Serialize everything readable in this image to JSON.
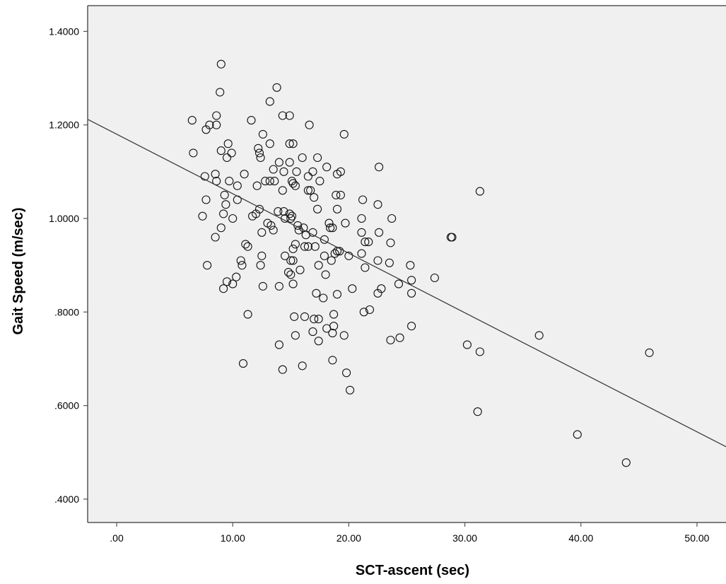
{
  "chart_data": {
    "type": "scatter",
    "xlabel": "SCT-ascent (sec)",
    "ylabel": "Gait Speed (m/sec)",
    "xlim": [
      -2.5,
      52.5
    ],
    "ylim": [
      0.35,
      1.455
    ],
    "x_ticks": [
      0,
      10,
      20,
      30,
      40,
      50
    ],
    "x_tick_labels": [
      ".00",
      "10.00",
      "20.00",
      "30.00",
      "40.00",
      "50.00"
    ],
    "y_ticks": [
      0.4,
      0.6,
      0.8,
      1.0,
      1.2,
      1.4
    ],
    "y_tick_labels": [
      ".4000",
      ".6000",
      ".8000",
      "1.0000",
      "1.2000",
      "1.4000"
    ],
    "grid": false,
    "plot_background": "#f0f0f0",
    "marker": "open-circle",
    "fit_line": {
      "type": "linear",
      "points": [
        [
          -2.5,
          1.212
        ],
        [
          52.5,
          0.512
        ]
      ]
    },
    "points": [
      [
        9.0,
        1.33
      ],
      [
        13.8,
        1.28
      ],
      [
        8.9,
        1.27
      ],
      [
        13.2,
        1.25
      ],
      [
        14.3,
        1.22
      ],
      [
        14.9,
        1.22
      ],
      [
        8.6,
        1.22
      ],
      [
        6.5,
        1.21
      ],
      [
        11.6,
        1.21
      ],
      [
        8.0,
        1.2
      ],
      [
        8.6,
        1.2
      ],
      [
        16.6,
        1.2
      ],
      [
        7.7,
        1.19
      ],
      [
        19.6,
        1.18
      ],
      [
        12.6,
        1.18
      ],
      [
        9.6,
        1.16
      ],
      [
        13.2,
        1.16
      ],
      [
        14.9,
        1.16
      ],
      [
        15.2,
        1.16
      ],
      [
        12.2,
        1.15
      ],
      [
        9.0,
        1.145
      ],
      [
        12.3,
        1.14
      ],
      [
        6.6,
        1.14
      ],
      [
        9.9,
        1.14
      ],
      [
        12.4,
        1.13
      ],
      [
        9.5,
        1.13
      ],
      [
        16.0,
        1.13
      ],
      [
        17.3,
        1.13
      ],
      [
        14.0,
        1.12
      ],
      [
        14.9,
        1.12
      ],
      [
        22.6,
        1.11
      ],
      [
        18.1,
        1.11
      ],
      [
        13.5,
        1.105
      ],
      [
        19.3,
        1.1
      ],
      [
        16.9,
        1.1
      ],
      [
        11.0,
        1.095
      ],
      [
        8.5,
        1.095
      ],
      [
        19.0,
        1.095
      ],
      [
        14.4,
        1.1
      ],
      [
        15.5,
        1.1
      ],
      [
        7.6,
        1.09
      ],
      [
        16.5,
        1.09
      ],
      [
        8.6,
        1.08
      ],
      [
        9.7,
        1.08
      ],
      [
        12.8,
        1.08
      ],
      [
        13.2,
        1.08
      ],
      [
        15.1,
        1.08
      ],
      [
        17.5,
        1.08
      ],
      [
        13.6,
        1.08
      ],
      [
        15.2,
        1.075
      ],
      [
        10.4,
        1.07
      ],
      [
        12.1,
        1.07
      ],
      [
        15.4,
        1.07
      ],
      [
        16.5,
        1.06
      ],
      [
        16.7,
        1.06
      ],
      [
        14.3,
        1.06
      ],
      [
        31.3,
        1.058
      ],
      [
        9.3,
        1.05
      ],
      [
        18.9,
        1.05
      ],
      [
        19.3,
        1.05
      ],
      [
        17.0,
        1.045
      ],
      [
        21.2,
        1.04
      ],
      [
        7.7,
        1.04
      ],
      [
        10.4,
        1.04
      ],
      [
        22.5,
        1.03
      ],
      [
        9.4,
        1.03
      ],
      [
        17.3,
        1.02
      ],
      [
        19.0,
        1.02
      ],
      [
        12.3,
        1.02
      ],
      [
        13.9,
        1.015
      ],
      [
        14.4,
        1.015
      ],
      [
        14.9,
        1.01
      ],
      [
        9.2,
        1.01
      ],
      [
        15.1,
        1.005
      ],
      [
        7.4,
        1.005
      ],
      [
        11.7,
        1.005
      ],
      [
        12.0,
        1.01
      ],
      [
        10.0,
        1.0
      ],
      [
        15.0,
        1.0
      ],
      [
        14.5,
        1.0
      ],
      [
        21.1,
        1.0
      ],
      [
        23.7,
        1.0
      ],
      [
        19.7,
        0.99
      ],
      [
        13.0,
        0.99
      ],
      [
        13.3,
        0.985
      ],
      [
        15.6,
        0.985
      ],
      [
        18.3,
        0.99
      ],
      [
        16.1,
        0.98
      ],
      [
        18.6,
        0.98
      ],
      [
        18.4,
        0.98
      ],
      [
        9.0,
        0.98
      ],
      [
        13.5,
        0.975
      ],
      [
        15.7,
        0.975
      ],
      [
        21.1,
        0.97
      ],
      [
        12.5,
        0.97
      ],
      [
        22.6,
        0.97
      ],
      [
        16.9,
        0.97
      ],
      [
        16.3,
        0.965
      ],
      [
        8.5,
        0.96
      ],
      [
        28.8,
        0.96
      ],
      [
        28.9,
        0.96
      ],
      [
        17.9,
        0.955
      ],
      [
        21.7,
        0.95
      ],
      [
        23.6,
        0.948
      ],
      [
        21.4,
        0.95
      ],
      [
        11.1,
        0.945
      ],
      [
        11.3,
        0.94
      ],
      [
        16.2,
        0.94
      ],
      [
        16.5,
        0.94
      ],
      [
        17.1,
        0.94
      ],
      [
        15.4,
        0.945
      ],
      [
        15.2,
        0.935
      ],
      [
        19.0,
        0.93
      ],
      [
        19.2,
        0.93
      ],
      [
        18.8,
        0.925
      ],
      [
        21.1,
        0.925
      ],
      [
        17.9,
        0.92
      ],
      [
        12.5,
        0.92
      ],
      [
        14.5,
        0.92
      ],
      [
        20.0,
        0.92
      ],
      [
        15.0,
        0.91
      ],
      [
        15.2,
        0.91
      ],
      [
        10.7,
        0.91
      ],
      [
        18.5,
        0.91
      ],
      [
        22.5,
        0.91
      ],
      [
        23.5,
        0.905
      ],
      [
        25.3,
        0.9
      ],
      [
        7.8,
        0.9
      ],
      [
        10.8,
        0.9
      ],
      [
        12.4,
        0.9
      ],
      [
        17.4,
        0.9
      ],
      [
        21.4,
        0.895
      ],
      [
        15.8,
        0.89
      ],
      [
        14.8,
        0.885
      ],
      [
        15.0,
        0.88
      ],
      [
        18.0,
        0.88
      ],
      [
        10.3,
        0.875
      ],
      [
        27.4,
        0.873
      ],
      [
        25.4,
        0.868
      ],
      [
        9.5,
        0.865
      ],
      [
        10.0,
        0.86
      ],
      [
        15.2,
        0.86
      ],
      [
        24.3,
        0.86
      ],
      [
        12.6,
        0.855
      ],
      [
        14.0,
        0.855
      ],
      [
        22.8,
        0.85
      ],
      [
        9.2,
        0.85
      ],
      [
        20.3,
        0.85
      ],
      [
        25.4,
        0.84
      ],
      [
        17.2,
        0.84
      ],
      [
        19.0,
        0.838
      ],
      [
        22.5,
        0.84
      ],
      [
        17.8,
        0.83
      ],
      [
        21.8,
        0.805
      ],
      [
        21.3,
        0.8
      ],
      [
        11.3,
        0.795
      ],
      [
        18.7,
        0.795
      ],
      [
        15.3,
        0.79
      ],
      [
        16.2,
        0.79
      ],
      [
        17.0,
        0.785
      ],
      [
        17.4,
        0.785
      ],
      [
        18.1,
        0.765
      ],
      [
        18.7,
        0.77
      ],
      [
        25.4,
        0.77
      ],
      [
        16.9,
        0.758
      ],
      [
        18.6,
        0.755
      ],
      [
        15.4,
        0.75
      ],
      [
        19.6,
        0.75
      ],
      [
        24.4,
        0.745
      ],
      [
        23.6,
        0.74
      ],
      [
        17.4,
        0.738
      ],
      [
        36.4,
        0.75
      ],
      [
        14.0,
        0.73
      ],
      [
        30.2,
        0.73
      ],
      [
        31.3,
        0.715
      ],
      [
        45.9,
        0.713
      ],
      [
        18.6,
        0.697
      ],
      [
        10.9,
        0.69
      ],
      [
        16.0,
        0.685
      ],
      [
        14.3,
        0.677
      ],
      [
        19.8,
        0.67
      ],
      [
        20.1,
        0.633
      ],
      [
        31.1,
        0.587
      ],
      [
        39.7,
        0.538
      ],
      [
        43.9,
        0.478
      ]
    ]
  }
}
